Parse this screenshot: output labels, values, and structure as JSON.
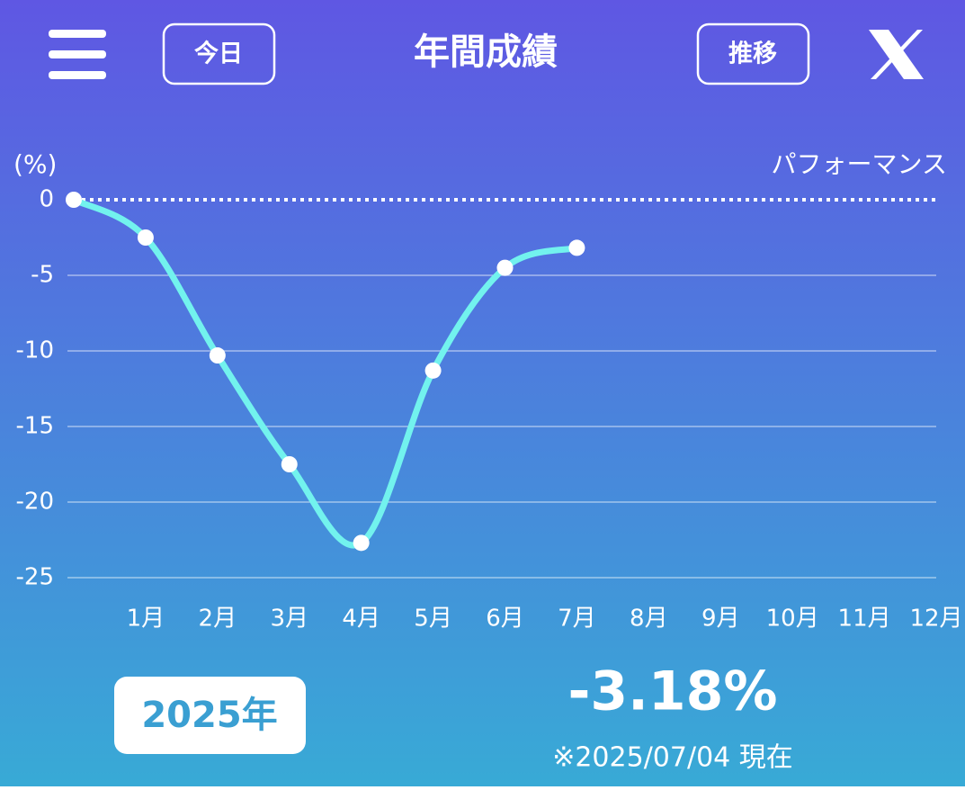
{
  "header": {
    "left_button": "今日",
    "title": "年間成績",
    "right_button": "推移"
  },
  "chart_data": {
    "type": "line",
    "y_label": "(%)",
    "legend": "パフォーマンス",
    "categories": [
      null,
      "1月",
      "2月",
      "3月",
      "4月",
      "5月",
      "6月",
      "7月",
      "8月",
      "9月",
      "10月",
      "11月",
      "12月"
    ],
    "series": [
      {
        "name": "パフォーマンス",
        "color": "#72f2ee",
        "values": [
          0,
          -2.5,
          -10.3,
          -17.5,
          -22.7,
          -11.3,
          -4.5,
          -3.18,
          null,
          null,
          null,
          null,
          null
        ]
      }
    ],
    "ylim": [
      -25,
      0
    ],
    "yticks": [
      0,
      -5,
      -10,
      -15,
      -20,
      -25
    ],
    "grid": true
  },
  "summary": {
    "year": "2025年",
    "performance": "-3.18%",
    "note": "※2025/07/04 現在"
  }
}
